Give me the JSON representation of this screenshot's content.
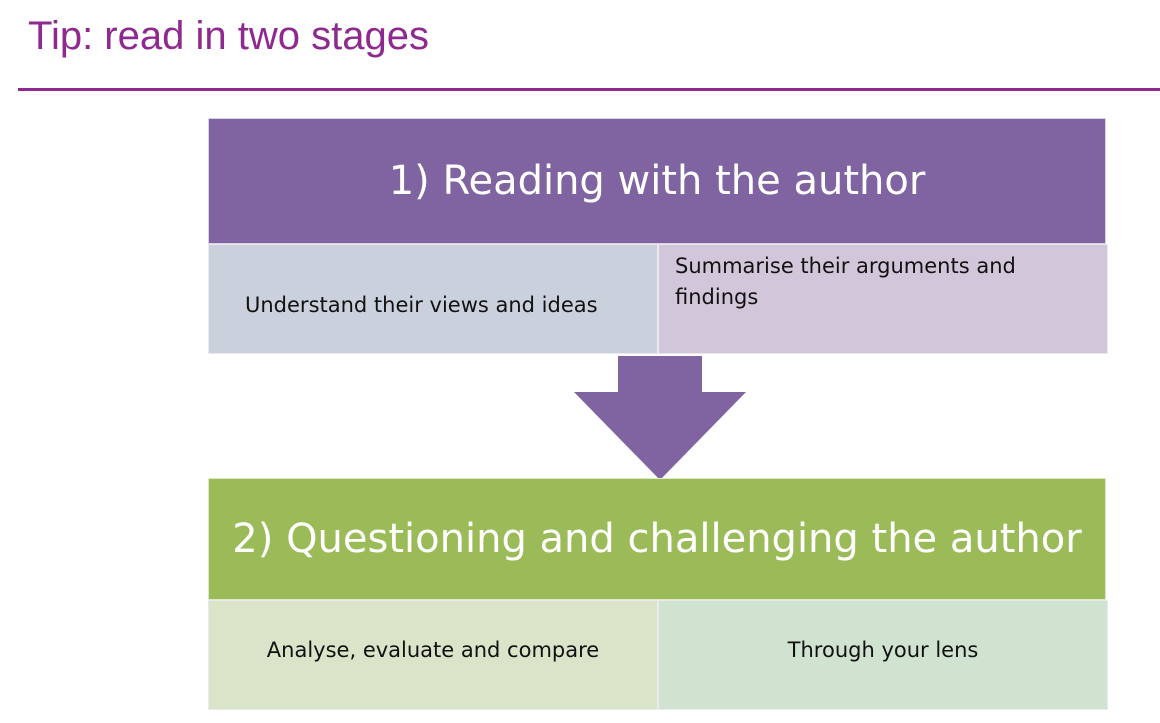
{
  "slide": {
    "title": "Tip: read in two stages"
  },
  "stage1": {
    "header": "1) Reading with the author",
    "items": [
      "Understand their views and ideas",
      "Summarise their arguments and findings"
    ]
  },
  "stage2": {
    "header": "2) Questioning and challenging the author",
    "items": [
      "Analyse, evaluate and compare",
      "Through your lens"
    ]
  },
  "colors": {
    "title": "#8e2a8f",
    "stage1": "#8064a2",
    "stage2": "#9bbb59",
    "arrow": "#8064a2"
  },
  "icons": {
    "arrow": "down-arrow-icon"
  }
}
